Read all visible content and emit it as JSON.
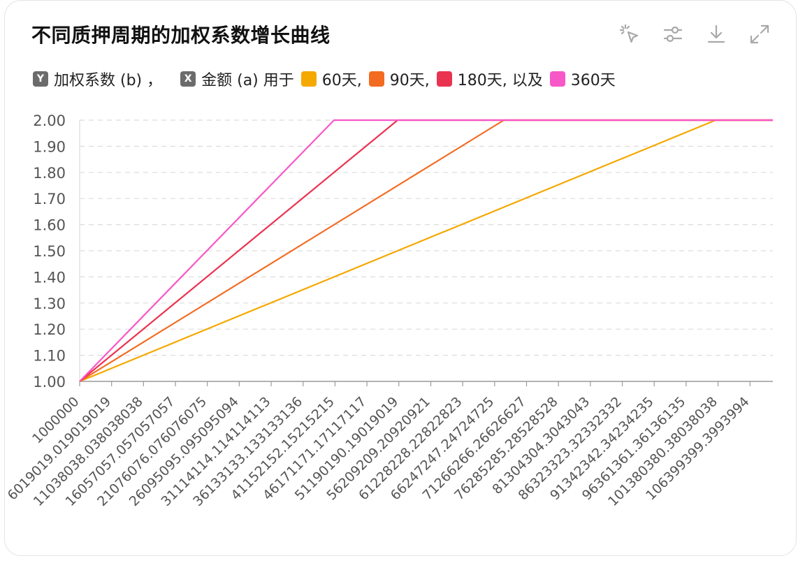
{
  "colors": {
    "s60": "#f5a800",
    "s90": "#f26b21",
    "s180": "#ea3350",
    "s360": "#f857c8",
    "grid": "#dcdcdc",
    "axis": "#9a9a9a",
    "tick_text": "#555555"
  },
  "header": {
    "title": "不同质押周期的加权系数增长曲线"
  },
  "toolbar": {
    "icons": [
      "cursor-click-icon",
      "sliders-icon",
      "download-icon",
      "expand-icon"
    ]
  },
  "legend": {
    "y_badge": "Y",
    "y_text": "加权系数 (b) ，",
    "x_badge": "X",
    "x_text": "金额 (a) 用于",
    "s60": "60天,",
    "s90": "90天,",
    "s180": "180天, 以及",
    "s360": "360天"
  },
  "chart_data": {
    "type": "line",
    "title": "不同质押周期的加权系数增长曲线",
    "xlabel": "金额 (a)",
    "ylabel": "加权系数 (b)",
    "ylim": [
      1.0,
      2.0
    ],
    "xlim": [
      1000000,
      110000000
    ],
    "y_ticks": [
      "1.00",
      "1.10",
      "1.20",
      "1.30",
      "1.40",
      "1.50",
      "1.60",
      "1.70",
      "1.80",
      "1.90",
      "2.00"
    ],
    "x_tick_values": [
      1000000,
      6019019.019,
      11038038.038,
      16057057.057,
      21076076.076,
      26095095.095,
      31114114.114,
      36133133.133,
      41152152.152,
      46171171.171,
      51190190.19,
      56209209.209,
      61228228.228,
      66247247.247,
      71266266.266,
      76285285.285,
      81304304.304,
      86323323.323,
      91342342.342,
      96361361.361,
      101380380.38,
      106399399.399
    ],
    "x_tick_labels": [
      "1000000",
      "6019019.019019019",
      "11038038.038038038",
      "16057057.057057057",
      "21076076.076076075",
      "26095095.095095094",
      "31114114.114114113",
      "36133133.133133136",
      "41152152.15215215",
      "46171171.17117117",
      "51190190.19019019",
      "56209209.20920921",
      "61228228.22822823",
      "66247247.24724725",
      "71266266.26626627",
      "76285285.28528528",
      "81304304.3043043",
      "86323323.32332332",
      "91342342.34234235",
      "96361361.36136135",
      "101380380.38038038",
      "106399399.3993994"
    ],
    "grid": true,
    "series": [
      {
        "name": "60天",
        "color_key": "s60",
        "x": [
          1000000,
          101000000,
          110000000
        ],
        "y": [
          1.0,
          2.0,
          2.0
        ]
      },
      {
        "name": "90天",
        "color_key": "s90",
        "x": [
          1000000,
          67700000,
          110000000
        ],
        "y": [
          1.0,
          2.0,
          2.0
        ]
      },
      {
        "name": "180天",
        "color_key": "s180",
        "x": [
          1000000,
          51000000,
          110000000
        ],
        "y": [
          1.0,
          2.0,
          2.0
        ]
      },
      {
        "name": "360天",
        "color_key": "s360",
        "x": [
          1000000,
          41000000,
          110000000
        ],
        "y": [
          1.0,
          2.0,
          2.0
        ]
      }
    ]
  }
}
